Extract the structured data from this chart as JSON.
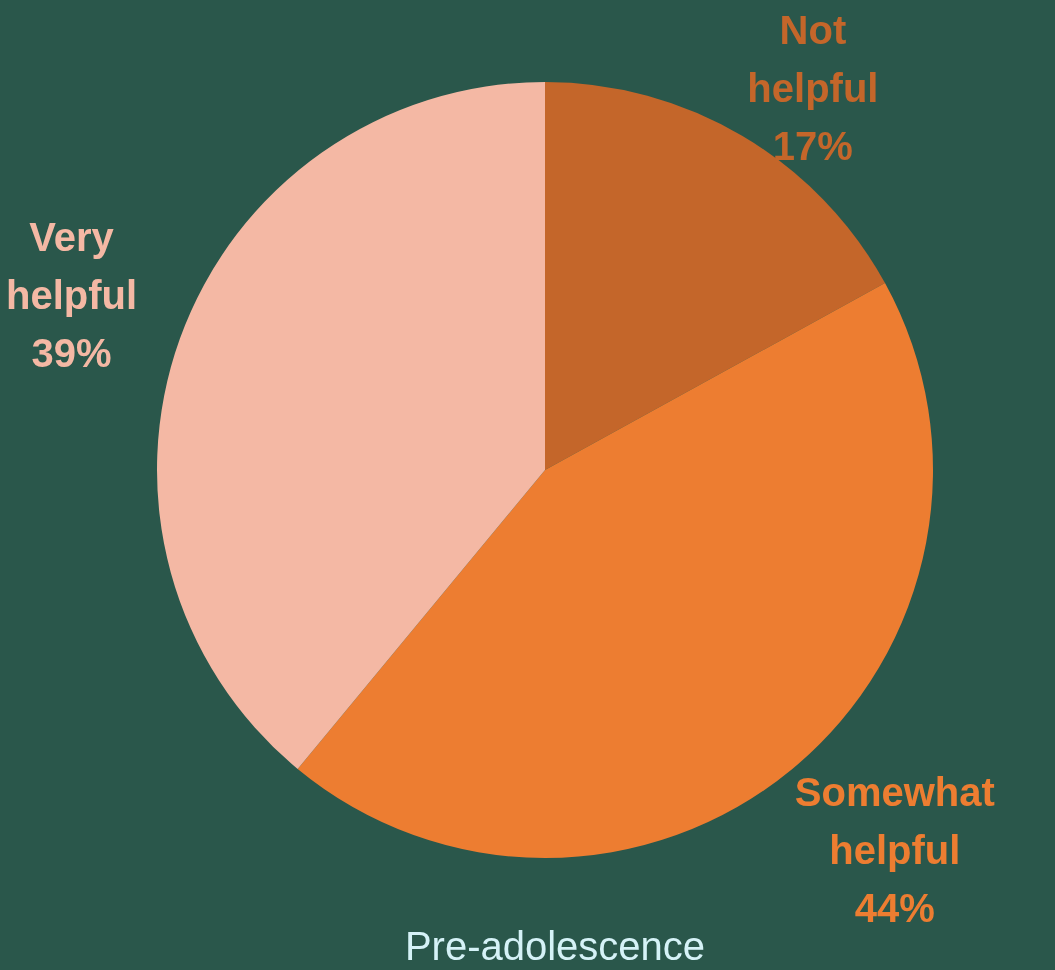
{
  "chart_data": {
    "type": "pie",
    "title": "Pre-adolescence",
    "categories": [
      "Not helpful",
      "Somewhat helpful",
      "Very helpful"
    ],
    "values": [
      17,
      44,
      39
    ],
    "colors": [
      "#c4662a",
      "#ed7d31",
      "#f4b8a4"
    ],
    "value_labels": [
      "17%",
      "44%",
      "39%"
    ]
  }
}
